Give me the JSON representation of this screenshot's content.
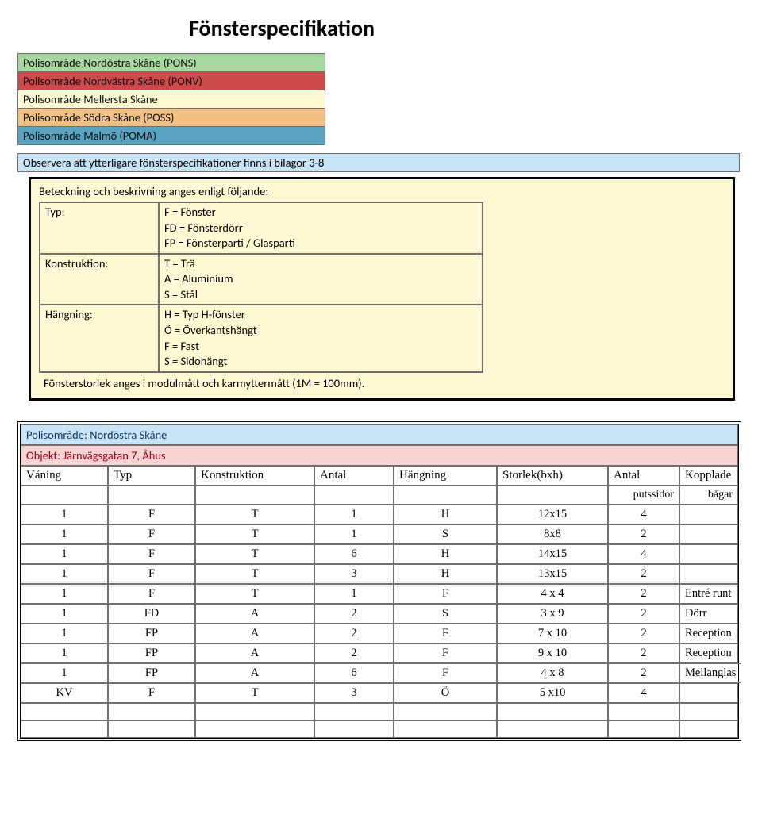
{
  "title": "Fönsterspecifikation",
  "colors": {
    "green": "#a7d89f",
    "red": "#cf4a4a",
    "yellow": "#fef9d2",
    "orange": "#f2c083",
    "blue": "#5aa2c1",
    "lightblue": "#c8e4f6",
    "pink": "#f7d4d4",
    "obsbar": "#c8e4f6"
  },
  "regions": [
    {
      "label": "Polisområde Nordöstra Skåne (PONS)",
      "bg_key": "green"
    },
    {
      "label": "Polisområde Nordvästra Skåne (PONV)",
      "bg_key": "red"
    },
    {
      "label": "Polisområde Mellersta Skåne",
      "bg_key": "yellow"
    },
    {
      "label": "Polisområde Södra Skåne (POSS)",
      "bg_key": "orange"
    },
    {
      "label": "Polisområde Malmö (POMA)",
      "bg_key": "blue"
    }
  ],
  "observera": "Observera att ytterligare fönsterspecifikationer finns i bilagor 3-8",
  "legend": {
    "heading": "Beteckning och beskrivning anges enligt följande:",
    "rows": [
      {
        "label": "Typ:",
        "lines": [
          "F = Fönster",
          "FD = Fönsterdörr",
          "FP = Fönsterparti / Glasparti"
        ]
      },
      {
        "label": "Konstruktion:",
        "lines": [
          "T = Trä",
          "A = Aluminium",
          "S = Stål"
        ]
      },
      {
        "label": "Hängning:",
        "lines": [
          "H = Typ H-fönster",
          "Ö = Överkantshängt",
          "F = Fast",
          "S = Sidohängt"
        ]
      }
    ],
    "note": "Fönsterstorlek anges i modulmått och karmyttermått (1M = 100mm)."
  },
  "section": {
    "polisomrade": "Polisområde: Nordöstra Skåne",
    "objekt": "Objekt: Järnvägsgatan 7, Åhus",
    "headers": [
      "Våning",
      "Typ",
      "Konstruktion",
      "Antal",
      "Hängning",
      "Storlek(bxh)",
      "Antal",
      "Kopplade"
    ],
    "subheaders": [
      "",
      "",
      "",
      "",
      "",
      "",
      "putssidor",
      "bågar"
    ],
    "rows": [
      [
        "1",
        "F",
        "T",
        "1",
        "H",
        "12x15",
        "4",
        ""
      ],
      [
        "1",
        "F",
        "T",
        "1",
        "S",
        "8x8",
        "2",
        ""
      ],
      [
        "1",
        "F",
        "T",
        "6",
        "H",
        "14x15",
        "4",
        ""
      ],
      [
        "1",
        "F",
        "T",
        "3",
        "H",
        "13x15",
        "2",
        ""
      ],
      [
        "1",
        "F",
        "T",
        "1",
        "F",
        "4 x 4",
        "2",
        "Entré runt"
      ],
      [
        "1",
        "FD",
        "A",
        "2",
        "S",
        "3 x 9",
        "2",
        "Dörr"
      ],
      [
        "1",
        "FP",
        "A",
        "2",
        "F",
        "7 x 10",
        "2",
        "Reception"
      ],
      [
        "1",
        "FP",
        "A",
        "2",
        "F",
        "9 x 10",
        "2",
        "Reception"
      ],
      [
        "1",
        "FP",
        "A",
        "6",
        "F",
        "4 x 8",
        "2",
        "Mellanglas"
      ],
      [
        "KV",
        "F",
        "T",
        "3",
        "Ö",
        "5 x10",
        "4",
        ""
      ]
    ]
  }
}
